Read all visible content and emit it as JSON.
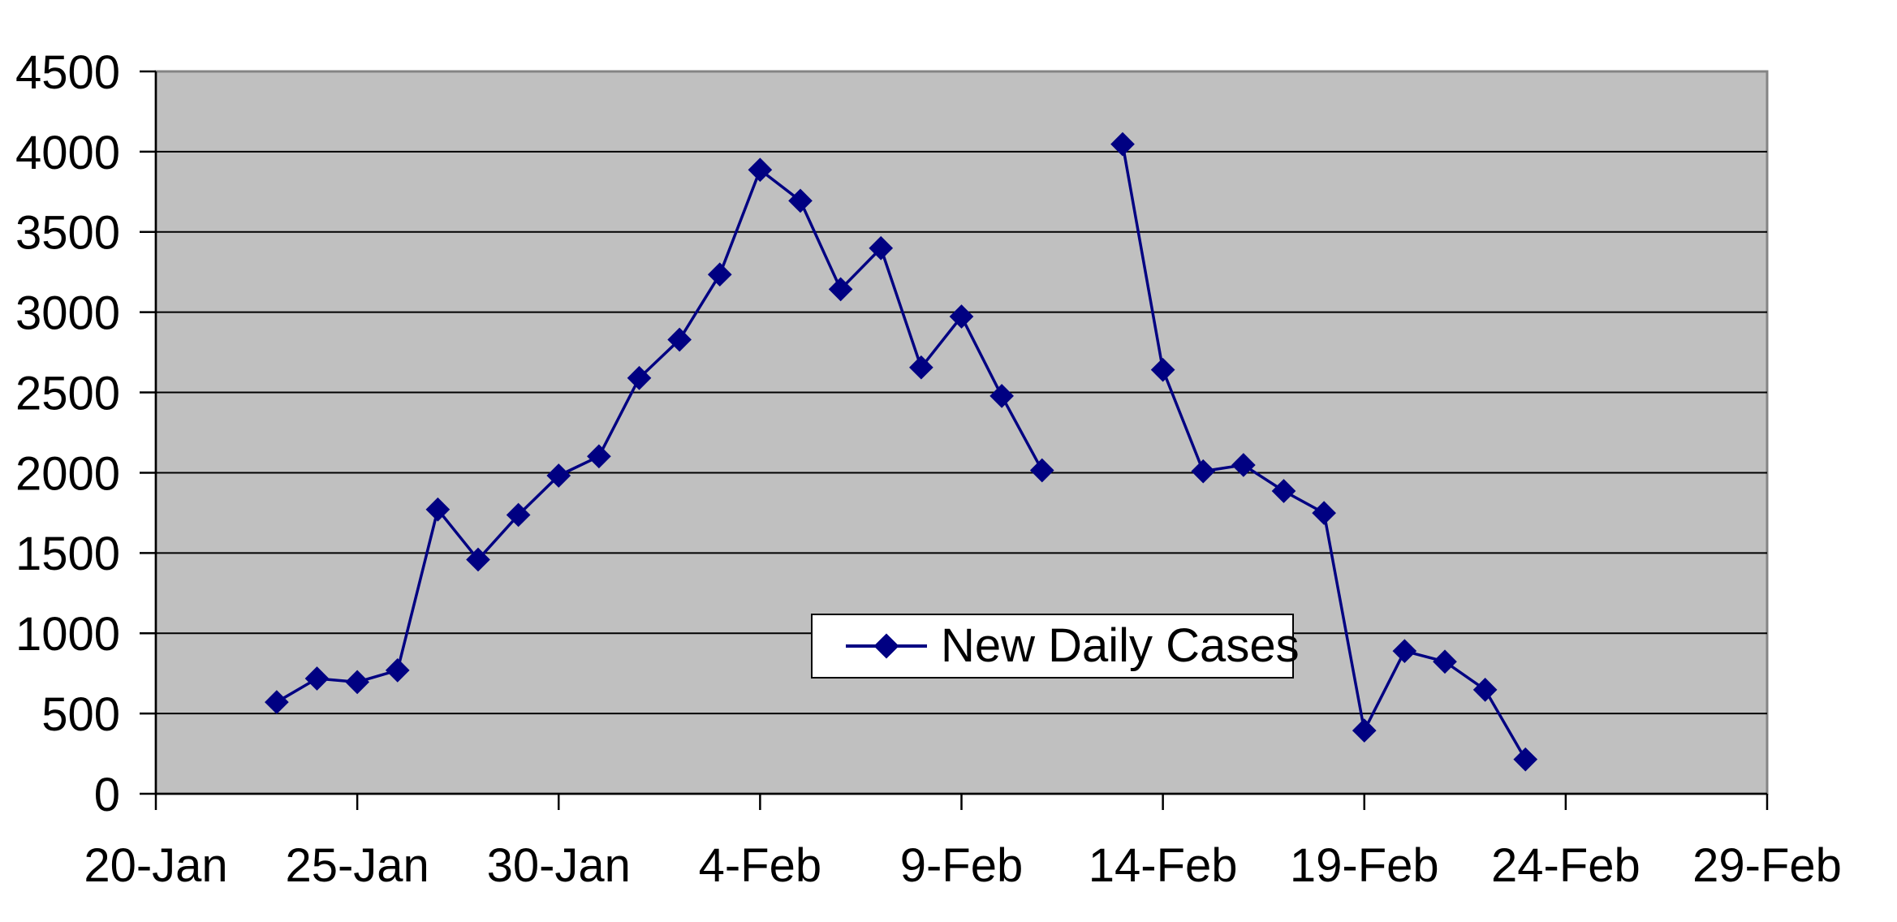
{
  "chart_data": {
    "type": "line",
    "title": "",
    "legend": {
      "label": "New Daily Cases",
      "position": "center-right-lower"
    },
    "x_axis": {
      "tick_labels": [
        "20-Jan",
        "25-Jan",
        "30-Jan",
        "4-Feb",
        "9-Feb",
        "14-Feb",
        "19-Feb",
        "24-Feb",
        "29-Feb"
      ],
      "start": "20-Jan",
      "end": "29-Feb",
      "total_days": 40,
      "days_per_tick": 5
    },
    "y_axis": {
      "min": 0,
      "max": 4500,
      "step": 500,
      "tick_labels": [
        "0",
        "500",
        "1000",
        "1500",
        "2000",
        "2500",
        "3000",
        "3500",
        "4000",
        "4500"
      ]
    },
    "grid": {
      "horizontal": true,
      "vertical": false
    },
    "colors": {
      "series": "#000082",
      "plot_background": "#c0c0c0",
      "plot_border": "#848484",
      "gridline": "#000000",
      "axis": "#000000",
      "page_background": "#ffffff",
      "legend_background": "#ffffff",
      "legend_border": "#000000"
    },
    "missing_days": [
      "12-Feb"
    ],
    "series": [
      {
        "name": "New Daily Cases",
        "marker": "diamond",
        "points": [
          {
            "date": "23-Jan",
            "day": 3,
            "value": 571
          },
          {
            "date": "24-Jan",
            "day": 4,
            "value": 718
          },
          {
            "date": "25-Jan",
            "day": 5,
            "value": 696
          },
          {
            "date": "26-Jan",
            "day": 6,
            "value": 769
          },
          {
            "date": "27-Jan",
            "day": 7,
            "value": 1771
          },
          {
            "date": "28-Jan",
            "day": 8,
            "value": 1459
          },
          {
            "date": "29-Jan",
            "day": 9,
            "value": 1737
          },
          {
            "date": "30-Jan",
            "day": 10,
            "value": 1982
          },
          {
            "date": "31-Jan",
            "day": 11,
            "value": 2102
          },
          {
            "date": "1-Feb",
            "day": 12,
            "value": 2590
          },
          {
            "date": "2-Feb",
            "day": 13,
            "value": 2829
          },
          {
            "date": "3-Feb",
            "day": 14,
            "value": 3235
          },
          {
            "date": "4-Feb",
            "day": 15,
            "value": 3887
          },
          {
            "date": "5-Feb",
            "day": 16,
            "value": 3694
          },
          {
            "date": "6-Feb",
            "day": 17,
            "value": 3143
          },
          {
            "date": "7-Feb",
            "day": 18,
            "value": 3399
          },
          {
            "date": "8-Feb",
            "day": 19,
            "value": 2656
          },
          {
            "date": "9-Feb",
            "day": 20,
            "value": 2973
          },
          {
            "date": "10-Feb",
            "day": 21,
            "value": 2478
          },
          {
            "date": "11-Feb",
            "day": 22,
            "value": 2015
          },
          {
            "date": "12-Feb",
            "day": 23,
            "value": null
          },
          {
            "date": "13-Feb",
            "day": 24,
            "value": 4047
          },
          {
            "date": "14-Feb",
            "day": 25,
            "value": 2641
          },
          {
            "date": "15-Feb",
            "day": 26,
            "value": 2009
          },
          {
            "date": "16-Feb",
            "day": 27,
            "value": 2048
          },
          {
            "date": "17-Feb",
            "day": 28,
            "value": 1886
          },
          {
            "date": "18-Feb",
            "day": 29,
            "value": 1749
          },
          {
            "date": "19-Feb",
            "day": 30,
            "value": 394
          },
          {
            "date": "20-Feb",
            "day": 31,
            "value": 889
          },
          {
            "date": "21-Feb",
            "day": 32,
            "value": 823
          },
          {
            "date": "22-Feb",
            "day": 33,
            "value": 648
          },
          {
            "date": "23-Feb",
            "day": 34,
            "value": 214
          }
        ]
      }
    ]
  }
}
